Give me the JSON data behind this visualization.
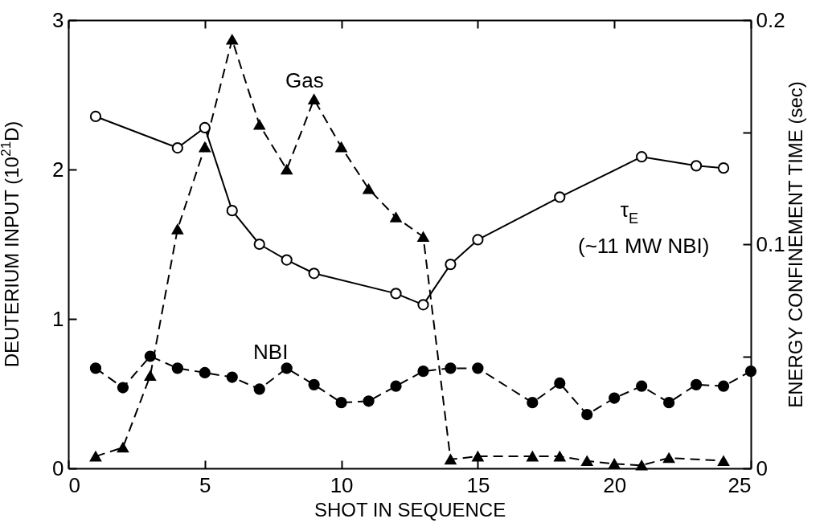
{
  "chart_data": {
    "type": "line",
    "xlabel": "SHOT IN SEQUENCE",
    "ylabel": "DEUTERIUM INPUT (10$^{21}$D)",
    "y2label": "ENERGY CONFINEMENT TIME (sec)",
    "xlim": [
      0,
      25
    ],
    "xticks": [
      0,
      5,
      10,
      15,
      20,
      25
    ],
    "ylim": [
      0,
      3
    ],
    "yticks": [
      0,
      1,
      2,
      3
    ],
    "y2lim": [
      0,
      0.2
    ],
    "y2ticks": [
      0,
      {
        "value": 0.05,
        "label": null
      },
      0.1,
      {
        "value": 0.15,
        "label": null
      },
      0.2
    ],
    "grid": false,
    "legend": false,
    "annotations": [
      "(~11 MW NBI)"
    ],
    "series": [
      {
        "name": "Gas",
        "color": "#000000",
        "marker": "triangle",
        "line_style": "dashed",
        "x": [
          1,
          2,
          3,
          4,
          5,
          6,
          7,
          8,
          9,
          10,
          11,
          12,
          13,
          14,
          15,
          17,
          18,
          19,
          20,
          21,
          22,
          24
        ],
        "values": [
          0.08,
          0.14,
          0.62,
          1.6,
          2.15,
          2.87,
          2.3,
          2.0,
          2.47,
          2.15,
          1.87,
          1.68,
          1.55,
          0.06,
          0.08,
          0.08,
          0.08,
          0.05,
          0.03,
          0.02,
          0.07,
          0.05
        ]
      },
      {
        "name": "NBI",
        "color": "#000000",
        "marker": "circle",
        "line_style": "dashed",
        "x": [
          1,
          2,
          3,
          4,
          5,
          6,
          7,
          8,
          9,
          10,
          11,
          12,
          13,
          14,
          15,
          17,
          18,
          19,
          20,
          21,
          22,
          23,
          24,
          25
        ],
        "values": [
          0.67,
          0.54,
          0.75,
          0.67,
          0.64,
          0.61,
          0.53,
          0.67,
          0.56,
          0.44,
          0.45,
          0.55,
          0.65,
          0.67,
          0.67,
          0.44,
          0.57,
          0.36,
          0.47,
          0.55,
          0.44,
          0.56,
          0.55,
          0.65
        ]
      },
      {
        "name": "τ$_{E}$",
        "color": "#000000",
        "marker": "circle",
        "line_style": "solid",
        "axis": "y2",
        "x": [
          1,
          4,
          5,
          6,
          7,
          8,
          9,
          12,
          13,
          14,
          15,
          18,
          21,
          23,
          24
        ],
        "values": [
          0.157,
          0.143,
          0.152,
          0.115,
          0.1,
          0.093,
          0.087,
          0.078,
          0.073,
          0.091,
          0.102,
          0.121,
          0.139,
          0.135,
          0.134
        ]
      }
    ]
  }
}
